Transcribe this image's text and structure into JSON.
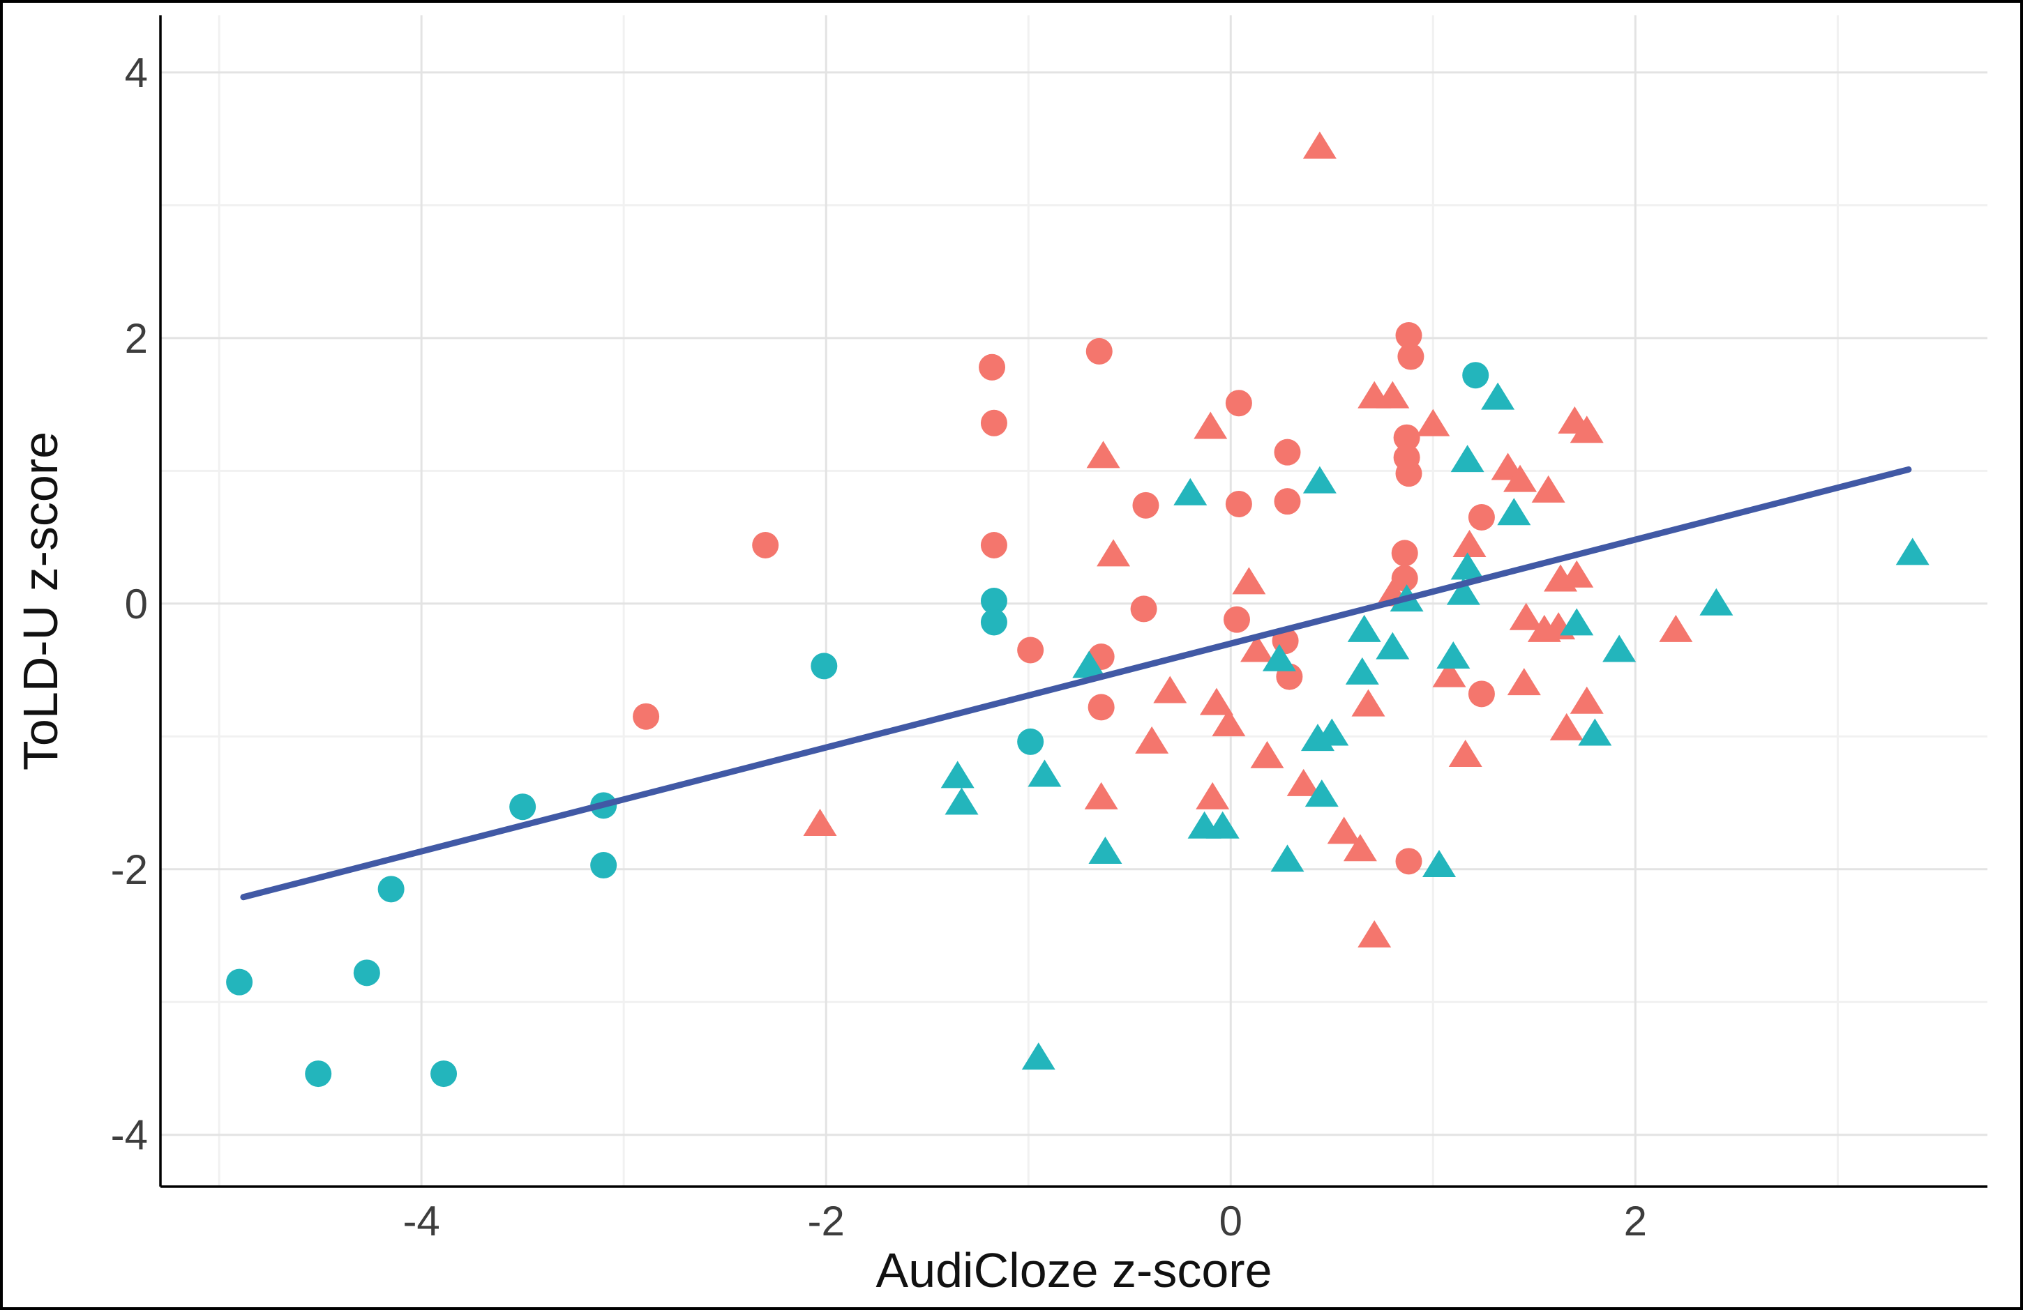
{
  "chart_data": {
    "type": "scatter",
    "title": "",
    "xlabel": "AudiCloze z-score",
    "ylabel": "ToLD-U z-score",
    "xlim": [
      -5.29,
      3.74
    ],
    "ylim": [
      -4.39,
      4.43
    ],
    "x_ticks": [
      -4,
      -2,
      0,
      2
    ],
    "y_ticks": [
      4,
      2,
      0,
      -2,
      -4
    ],
    "x_minor_gridlines": [
      -5,
      -3,
      -1,
      1,
      3
    ],
    "y_minor_gridlines": [
      3,
      1,
      -1,
      -3
    ],
    "grid": "on",
    "legend_position": "none",
    "colors": {
      "coral": "#F4766D",
      "teal": "#23B5BC",
      "regression_line": "#4159A5",
      "grid_major": "#E3E3E3",
      "grid_minor": "#F1F1F1",
      "axis_line": "#000000",
      "tick_label": "#3d3d3d",
      "axis_title": "#111111"
    },
    "regression_line": {
      "x1": -4.88,
      "y1": -2.21,
      "x2": 3.35,
      "y2": 1.01
    },
    "series": [
      {
        "name": "coral-circles",
        "color": "#F4766D",
        "shape": "circle",
        "points": [
          [
            -1.18,
            1.78
          ],
          [
            -1.17,
            1.36
          ],
          [
            -2.3,
            0.44
          ],
          [
            -1.17,
            0.44
          ],
          [
            -0.99,
            -0.35
          ],
          [
            -2.89,
            -0.85
          ],
          [
            -0.65,
            1.9
          ],
          [
            0.88,
            2.02
          ],
          [
            0.89,
            1.86
          ],
          [
            0.04,
            1.51
          ],
          [
            0.28,
            1.14
          ],
          [
            0.87,
            1.25
          ],
          [
            0.87,
            1.1
          ],
          [
            0.88,
            0.98
          ],
          [
            1.24,
            0.65
          ],
          [
            0.04,
            0.75
          ],
          [
            0.28,
            0.77
          ],
          [
            -0.42,
            0.74
          ],
          [
            -0.43,
            -0.04
          ],
          [
            0.86,
            0.38
          ],
          [
            0.86,
            0.19
          ],
          [
            0.03,
            -0.12
          ],
          [
            0.27,
            -0.28
          ],
          [
            0.29,
            -0.55
          ],
          [
            -0.64,
            -0.4
          ],
          [
            -0.64,
            -0.78
          ],
          [
            1.24,
            -0.68
          ],
          [
            0.88,
            -1.94
          ]
        ]
      },
      {
        "name": "coral-triangles",
        "color": "#F4766D",
        "shape": "triangle",
        "points": [
          [
            0.44,
            3.44
          ],
          [
            0.71,
            1.56
          ],
          [
            0.8,
            1.56
          ],
          [
            -0.1,
            1.33
          ],
          [
            1.0,
            1.35
          ],
          [
            1.7,
            1.37
          ],
          [
            1.76,
            1.3
          ],
          [
            1.37,
            1.02
          ],
          [
            1.43,
            0.93
          ],
          [
            1.57,
            0.85
          ],
          [
            -0.63,
            1.11
          ],
          [
            -0.58,
            0.37
          ],
          [
            0.09,
            0.16
          ],
          [
            0.8,
            0.07
          ],
          [
            1.18,
            0.44
          ],
          [
            1.63,
            0.18
          ],
          [
            1.71,
            0.21
          ],
          [
            1.46,
            -0.11
          ],
          [
            1.55,
            -0.2
          ],
          [
            1.62,
            -0.18
          ],
          [
            0.13,
            -0.35
          ],
          [
            -0.3,
            -0.66
          ],
          [
            -0.07,
            -0.75
          ],
          [
            -0.01,
            -0.91
          ],
          [
            -0.39,
            -1.04
          ],
          [
            0.18,
            -1.15
          ],
          [
            0.68,
            -0.76
          ],
          [
            1.08,
            -0.54
          ],
          [
            1.45,
            -0.6
          ],
          [
            1.76,
            -0.74
          ],
          [
            1.66,
            -0.94
          ],
          [
            2.2,
            -0.2
          ],
          [
            1.16,
            -1.14
          ],
          [
            0.36,
            -1.36
          ],
          [
            -0.09,
            -1.46
          ],
          [
            -0.64,
            -1.46
          ],
          [
            0.56,
            -1.72
          ],
          [
            0.64,
            -1.85
          ],
          [
            0.71,
            -2.5
          ],
          [
            -2.03,
            -1.66
          ]
        ]
      },
      {
        "name": "teal-circles",
        "color": "#23B5BC",
        "shape": "circle",
        "points": [
          [
            -4.9,
            -2.85
          ],
          [
            -4.51,
            -3.54
          ],
          [
            -3.89,
            -3.54
          ],
          [
            -4.27,
            -2.78
          ],
          [
            -4.15,
            -2.15
          ],
          [
            -3.5,
            -1.53
          ],
          [
            -3.1,
            -1.52
          ],
          [
            -3.1,
            -1.97
          ],
          [
            -2.01,
            -0.47
          ],
          [
            -1.17,
            0.02
          ],
          [
            -1.17,
            -0.14
          ],
          [
            -0.99,
            -1.04
          ],
          [
            1.21,
            1.72
          ]
        ]
      },
      {
        "name": "teal-triangles",
        "color": "#23B5BC",
        "shape": "triangle",
        "points": [
          [
            1.32,
            1.55
          ],
          [
            1.17,
            1.08
          ],
          [
            1.4,
            0.68
          ],
          [
            0.44,
            0.92
          ],
          [
            -0.2,
            0.83
          ],
          [
            0.87,
            0.03
          ],
          [
            1.17,
            0.27
          ],
          [
            1.15,
            0.08
          ],
          [
            1.71,
            -0.15
          ],
          [
            -0.7,
            -0.47
          ],
          [
            0.24,
            -0.42
          ],
          [
            0.66,
            -0.2
          ],
          [
            0.8,
            -0.33
          ],
          [
            0.65,
            -0.52
          ],
          [
            1.1,
            -0.4
          ],
          [
            1.92,
            -0.35
          ],
          [
            2.4,
            0.0
          ],
          [
            3.37,
            0.38
          ],
          [
            1.8,
            -0.98
          ],
          [
            0.43,
            -1.02
          ],
          [
            0.5,
            -0.98
          ],
          [
            -1.35,
            -1.3
          ],
          [
            -1.33,
            -1.5
          ],
          [
            -0.92,
            -1.29
          ],
          [
            -0.13,
            -1.68
          ],
          [
            -0.04,
            -1.68
          ],
          [
            0.45,
            -1.44
          ],
          [
            0.28,
            -1.93
          ],
          [
            1.03,
            -1.97
          ],
          [
            -0.62,
            -1.87
          ],
          [
            -0.95,
            -3.42
          ]
        ]
      }
    ]
  }
}
